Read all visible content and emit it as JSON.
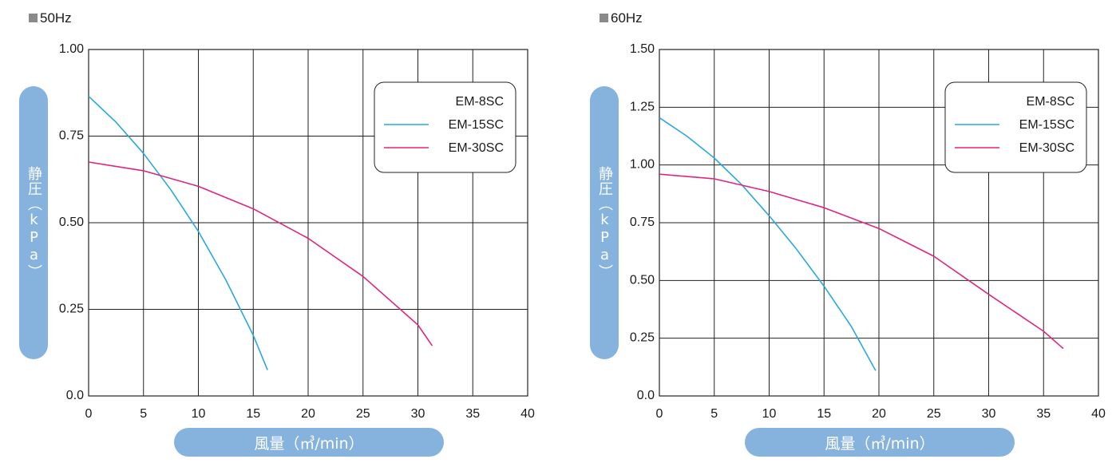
{
  "chart_data": [
    {
      "type": "line",
      "frequency_label": "50Hz",
      "title": "",
      "ylabel": "静圧（kPa）",
      "xlabel": "風量（㎥/min）",
      "xlim": [
        0,
        40
      ],
      "ylim": [
        0,
        1.0
      ],
      "x_ticks": [
        "0",
        "5",
        "10",
        "15",
        "20",
        "25",
        "30",
        "35",
        "40"
      ],
      "x_tick_values": [
        0,
        5,
        10,
        15,
        20,
        25,
        30,
        35,
        40
      ],
      "y_ticks": [
        "0.0",
        "0.25",
        "0.50",
        "0.75",
        "1.00"
      ],
      "y_tick_values": [
        0,
        0.25,
        0.5,
        0.75,
        1.0
      ],
      "grid": true,
      "legend_position": "top-right",
      "series": [
        {
          "name": "EM-8SC",
          "color": "",
          "points": []
        },
        {
          "name": "EM-15SC",
          "color": "#2aa7e0",
          "points": [
            [
              0,
              0.865
            ],
            [
              2.5,
              0.79
            ],
            [
              5,
              0.7
            ],
            [
              7.5,
              0.595
            ],
            [
              10,
              0.475
            ],
            [
              12.5,
              0.335
            ],
            [
              15,
              0.175
            ],
            [
              16.3,
              0.075
            ]
          ]
        },
        {
          "name": "EM-30SC",
          "color": "#e0257f",
          "points": [
            [
              0,
              0.675
            ],
            [
              5,
              0.65
            ],
            [
              10,
              0.605
            ],
            [
              15,
              0.54
            ],
            [
              20,
              0.455
            ],
            [
              25,
              0.345
            ],
            [
              30,
              0.205
            ],
            [
              31.3,
              0.145
            ]
          ]
        }
      ]
    },
    {
      "type": "line",
      "frequency_label": "60Hz",
      "title": "",
      "ylabel": "静圧（kPa）",
      "xlabel": "風量（㎥/min）",
      "xlim": [
        0,
        40
      ],
      "ylim": [
        0,
        1.5
      ],
      "x_ticks": [
        "0",
        "5",
        "10",
        "15",
        "20",
        "25",
        "30",
        "35",
        "40"
      ],
      "x_tick_values": [
        0,
        5,
        10,
        15,
        20,
        25,
        30,
        35,
        40
      ],
      "y_ticks": [
        "0.0",
        "0.25",
        "0.50",
        "0.75",
        "1.00",
        "1.25",
        "1.50"
      ],
      "y_tick_values": [
        0,
        0.25,
        0.5,
        0.75,
        1.0,
        1.25,
        1.5
      ],
      "grid": true,
      "legend_position": "top-right",
      "series": [
        {
          "name": "EM-8SC",
          "color": "",
          "points": []
        },
        {
          "name": "EM-15SC",
          "color": "#2aa7e0",
          "points": [
            [
              0,
              1.205
            ],
            [
              2.5,
              1.125
            ],
            [
              5,
              1.03
            ],
            [
              7.5,
              0.915
            ],
            [
              10,
              0.78
            ],
            [
              12.5,
              0.635
            ],
            [
              15,
              0.475
            ],
            [
              17.5,
              0.3
            ],
            [
              19.7,
              0.11
            ]
          ]
        },
        {
          "name": "EM-30SC",
          "color": "#e0257f",
          "points": [
            [
              0,
              0.96
            ],
            [
              5,
              0.94
            ],
            [
              10,
              0.885
            ],
            [
              15,
              0.815
            ],
            [
              20,
              0.725
            ],
            [
              25,
              0.605
            ],
            [
              30,
              0.44
            ],
            [
              35,
              0.28
            ],
            [
              36.8,
              0.205
            ]
          ]
        }
      ]
    }
  ]
}
